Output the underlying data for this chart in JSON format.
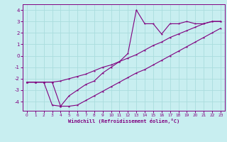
{
  "xlabel": "Windchill (Refroidissement éolien,°C)",
  "xlim": [
    -0.5,
    23.5
  ],
  "ylim": [
    -4.8,
    4.5
  ],
  "yticks": [
    -4,
    -3,
    -2,
    -1,
    0,
    1,
    2,
    3,
    4
  ],
  "xtick_labels": [
    "0",
    "1",
    "2",
    "3",
    "4",
    "5",
    "6",
    "7",
    "8",
    "9",
    "10",
    "11",
    "12",
    "13",
    "14",
    "15",
    "16",
    "17",
    "18",
    "19",
    "20",
    "21",
    "22",
    "23"
  ],
  "xtick_vals": [
    0,
    1,
    2,
    3,
    4,
    5,
    6,
    7,
    8,
    9,
    10,
    11,
    12,
    13,
    14,
    15,
    16,
    17,
    18,
    19,
    20,
    21,
    22,
    23
  ],
  "bg_color": "#c8eef0",
  "line_color": "#800080",
  "grid_color": "#aadddd",
  "line1_x": [
    0,
    1,
    2,
    3,
    4,
    5,
    6,
    7,
    8,
    9,
    10,
    11,
    12,
    13,
    14,
    15,
    16,
    17,
    18,
    19,
    20,
    21,
    22,
    23
  ],
  "line1_y": [
    -2.3,
    -2.3,
    -2.3,
    -4.3,
    -4.4,
    -4.4,
    -4.3,
    -3.9,
    -3.5,
    -3.1,
    -2.7,
    -2.3,
    -1.9,
    -1.5,
    -1.2,
    -0.8,
    -0.4,
    0.0,
    0.4,
    0.8,
    1.2,
    1.6,
    2.0,
    2.4
  ],
  "line2_x": [
    0,
    1,
    2,
    3,
    4,
    5,
    6,
    7,
    8,
    9,
    10,
    11,
    12,
    13,
    14,
    15,
    16,
    17,
    18,
    19,
    20,
    21,
    22,
    23
  ],
  "line2_y": [
    -2.3,
    -2.3,
    -2.3,
    -2.3,
    -4.4,
    -3.5,
    -3.0,
    -2.5,
    -2.2,
    -1.5,
    -1.0,
    -0.5,
    0.2,
    4.0,
    2.8,
    2.8,
    1.9,
    2.8,
    2.8,
    3.0,
    2.8,
    2.8,
    3.0,
    3.0
  ],
  "line3_x": [
    0,
    1,
    2,
    3,
    4,
    5,
    6,
    7,
    8,
    9,
    10,
    11,
    12,
    13,
    14,
    15,
    16,
    17,
    18,
    19,
    20,
    21,
    22,
    23
  ],
  "line3_y": [
    -2.3,
    -2.3,
    -2.3,
    -2.3,
    -2.2,
    -2.0,
    -1.8,
    -1.6,
    -1.3,
    -1.0,
    -0.8,
    -0.5,
    -0.2,
    0.1,
    0.5,
    0.9,
    1.2,
    1.6,
    1.9,
    2.2,
    2.5,
    2.8,
    3.0,
    3.0
  ]
}
